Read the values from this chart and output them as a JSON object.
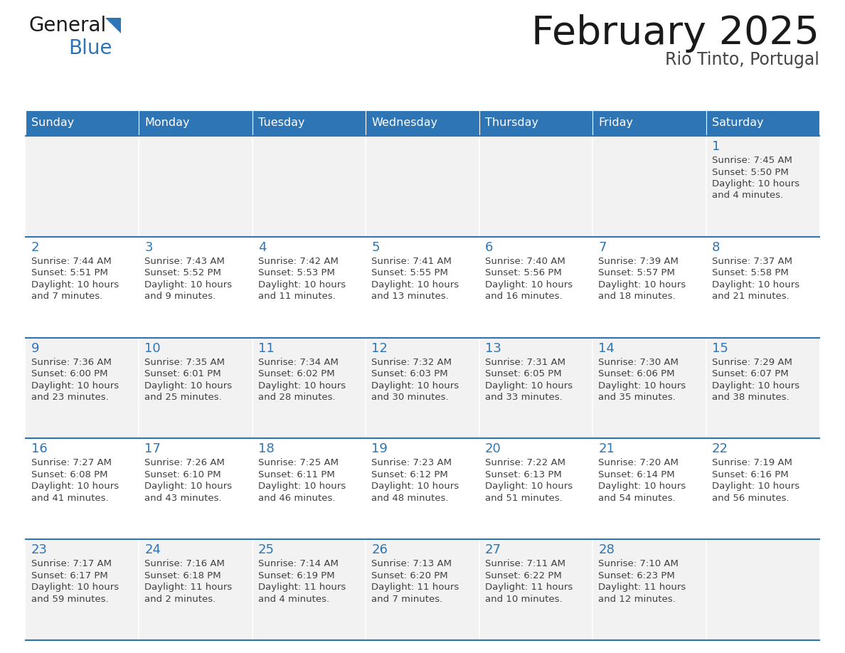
{
  "title": "February 2025",
  "subtitle": "Rio Tinto, Portugal",
  "header_bg": "#2E75B6",
  "header_text_color": "#FFFFFF",
  "days_of_week": [
    "Sunday",
    "Monday",
    "Tuesday",
    "Wednesday",
    "Thursday",
    "Friday",
    "Saturday"
  ],
  "cell_bg_even": "#F2F2F2",
  "cell_bg_odd": "#FFFFFF",
  "text_color": "#404040",
  "day_num_color": "#2E75B6",
  "calendar": [
    [
      null,
      null,
      null,
      null,
      null,
      null,
      1
    ],
    [
      2,
      3,
      4,
      5,
      6,
      7,
      8
    ],
    [
      9,
      10,
      11,
      12,
      13,
      14,
      15
    ],
    [
      16,
      17,
      18,
      19,
      20,
      21,
      22
    ],
    [
      23,
      24,
      25,
      26,
      27,
      28,
      null
    ]
  ],
  "sunrise": {
    "1": "7:45 AM",
    "2": "7:44 AM",
    "3": "7:43 AM",
    "4": "7:42 AM",
    "5": "7:41 AM",
    "6": "7:40 AM",
    "7": "7:39 AM",
    "8": "7:37 AM",
    "9": "7:36 AM",
    "10": "7:35 AM",
    "11": "7:34 AM",
    "12": "7:32 AM",
    "13": "7:31 AM",
    "14": "7:30 AM",
    "15": "7:29 AM",
    "16": "7:27 AM",
    "17": "7:26 AM",
    "18": "7:25 AM",
    "19": "7:23 AM",
    "20": "7:22 AM",
    "21": "7:20 AM",
    "22": "7:19 AM",
    "23": "7:17 AM",
    "24": "7:16 AM",
    "25": "7:14 AM",
    "26": "7:13 AM",
    "27": "7:11 AM",
    "28": "7:10 AM"
  },
  "sunset": {
    "1": "5:50 PM",
    "2": "5:51 PM",
    "3": "5:52 PM",
    "4": "5:53 PM",
    "5": "5:55 PM",
    "6": "5:56 PM",
    "7": "5:57 PM",
    "8": "5:58 PM",
    "9": "6:00 PM",
    "10": "6:01 PM",
    "11": "6:02 PM",
    "12": "6:03 PM",
    "13": "6:05 PM",
    "14": "6:06 PM",
    "15": "6:07 PM",
    "16": "6:08 PM",
    "17": "6:10 PM",
    "18": "6:11 PM",
    "19": "6:12 PM",
    "20": "6:13 PM",
    "21": "6:14 PM",
    "22": "6:16 PM",
    "23": "6:17 PM",
    "24": "6:18 PM",
    "25": "6:19 PM",
    "26": "6:20 PM",
    "27": "6:22 PM",
    "28": "6:23 PM"
  },
  "daylight_line1": {
    "1": "Daylight: 10 hours",
    "2": "Daylight: 10 hours",
    "3": "Daylight: 10 hours",
    "4": "Daylight: 10 hours",
    "5": "Daylight: 10 hours",
    "6": "Daylight: 10 hours",
    "7": "Daylight: 10 hours",
    "8": "Daylight: 10 hours",
    "9": "Daylight: 10 hours",
    "10": "Daylight: 10 hours",
    "11": "Daylight: 10 hours",
    "12": "Daylight: 10 hours",
    "13": "Daylight: 10 hours",
    "14": "Daylight: 10 hours",
    "15": "Daylight: 10 hours",
    "16": "Daylight: 10 hours",
    "17": "Daylight: 10 hours",
    "18": "Daylight: 10 hours",
    "19": "Daylight: 10 hours",
    "20": "Daylight: 10 hours",
    "21": "Daylight: 10 hours",
    "22": "Daylight: 10 hours",
    "23": "Daylight: 10 hours",
    "24": "Daylight: 11 hours",
    "25": "Daylight: 11 hours",
    "26": "Daylight: 11 hours",
    "27": "Daylight: 11 hours",
    "28": "Daylight: 11 hours"
  },
  "daylight_line2": {
    "1": "and 4 minutes.",
    "2": "and 7 minutes.",
    "3": "and 9 minutes.",
    "4": "and 11 minutes.",
    "5": "and 13 minutes.",
    "6": "and 16 minutes.",
    "7": "and 18 minutes.",
    "8": "and 21 minutes.",
    "9": "and 23 minutes.",
    "10": "and 25 minutes.",
    "11": "and 28 minutes.",
    "12": "and 30 minutes.",
    "13": "and 33 minutes.",
    "14": "and 35 minutes.",
    "15": "and 38 minutes.",
    "16": "and 41 minutes.",
    "17": "and 43 minutes.",
    "18": "and 46 minutes.",
    "19": "and 48 minutes.",
    "20": "and 51 minutes.",
    "21": "and 54 minutes.",
    "22": "and 56 minutes.",
    "23": "and 59 minutes.",
    "24": "and 2 minutes.",
    "25": "and 4 minutes.",
    "26": "and 7 minutes.",
    "27": "and 10 minutes.",
    "28": "and 12 minutes."
  },
  "logo_general_color": "#1A1A1A",
  "logo_blue_color": "#2E75B6",
  "logo_triangle_color": "#2E75B6",
  "figure_width": 11.88,
  "figure_height": 9.18,
  "dpi": 100
}
